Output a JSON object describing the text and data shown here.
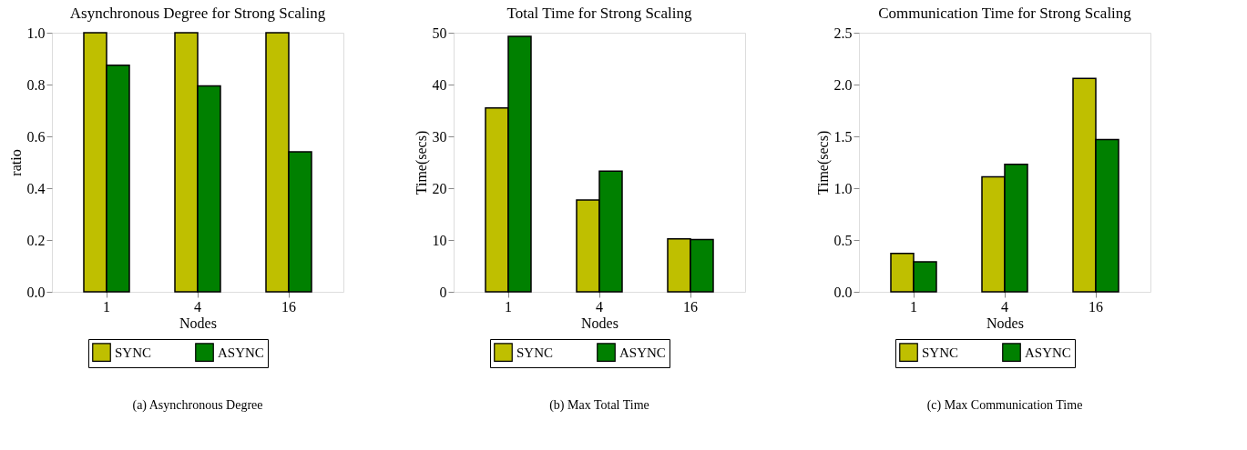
{
  "chart_data": [
    {
      "type": "bar",
      "title": "Asynchronous Degree for Strong Scaling",
      "xlabel": "Nodes",
      "ylabel": "ratio",
      "categories": [
        "1",
        "4",
        "16"
      ],
      "series": [
        {
          "name": "SYNC",
          "color": "#bfbf00",
          "values": [
            1.0,
            1.0,
            1.0
          ]
        },
        {
          "name": "ASYNC",
          "color": "#008000",
          "values": [
            0.875,
            0.795,
            0.54
          ]
        }
      ],
      "ylim": [
        0,
        1
      ],
      "yticks": [
        {
          "value": 0,
          "label": "0.0"
        },
        0.2,
        0.4,
        0.6,
        0.8,
        {
          "value": 1,
          "label": "1.0"
        }
      ],
      "legend": "bottom",
      "annotations": [
        "(a) Asynchronous Degree"
      ]
    },
    {
      "type": "bar",
      "title": "Total Time for Strong Scaling",
      "xlabel": "Nodes",
      "ylabel": "Time(secs)",
      "categories": [
        "1",
        "4",
        "16"
      ],
      "series": [
        {
          "name": "SYNC",
          "color": "#bfbf00",
          "values": [
            35.5,
            17.7,
            10.2
          ]
        },
        {
          "name": "ASYNC",
          "color": "#008000",
          "values": [
            49.3,
            23.3,
            10.1
          ]
        }
      ],
      "ylim": [
        0,
        50
      ],
      "yticks": [
        0,
        10,
        20,
        30,
        40,
        50
      ],
      "legend": "bottom",
      "annotations": [
        "(b) Max Total Time"
      ]
    },
    {
      "type": "bar",
      "title": "Communication Time for Strong Scaling",
      "xlabel": "Nodes",
      "ylabel": "Time(secs)",
      "categories": [
        "1",
        "4",
        "16"
      ],
      "series": [
        {
          "name": "SYNC",
          "color": "#bfbf00",
          "values": [
            0.37,
            1.11,
            2.06
          ]
        },
        {
          "name": "ASYNC",
          "color": "#008000",
          "values": [
            0.29,
            1.23,
            1.47
          ]
        }
      ],
      "ylim": [
        0,
        2.5
      ],
      "yticks": [
        {
          "value": 0,
          "label": "0.0"
        },
        0.5,
        {
          "value": 1,
          "label": "1.0"
        },
        1.5,
        {
          "value": 2,
          "label": "2.0"
        },
        2.5
      ],
      "legend": "bottom",
      "annotations": [
        "(c) Max Communication Time"
      ]
    }
  ]
}
